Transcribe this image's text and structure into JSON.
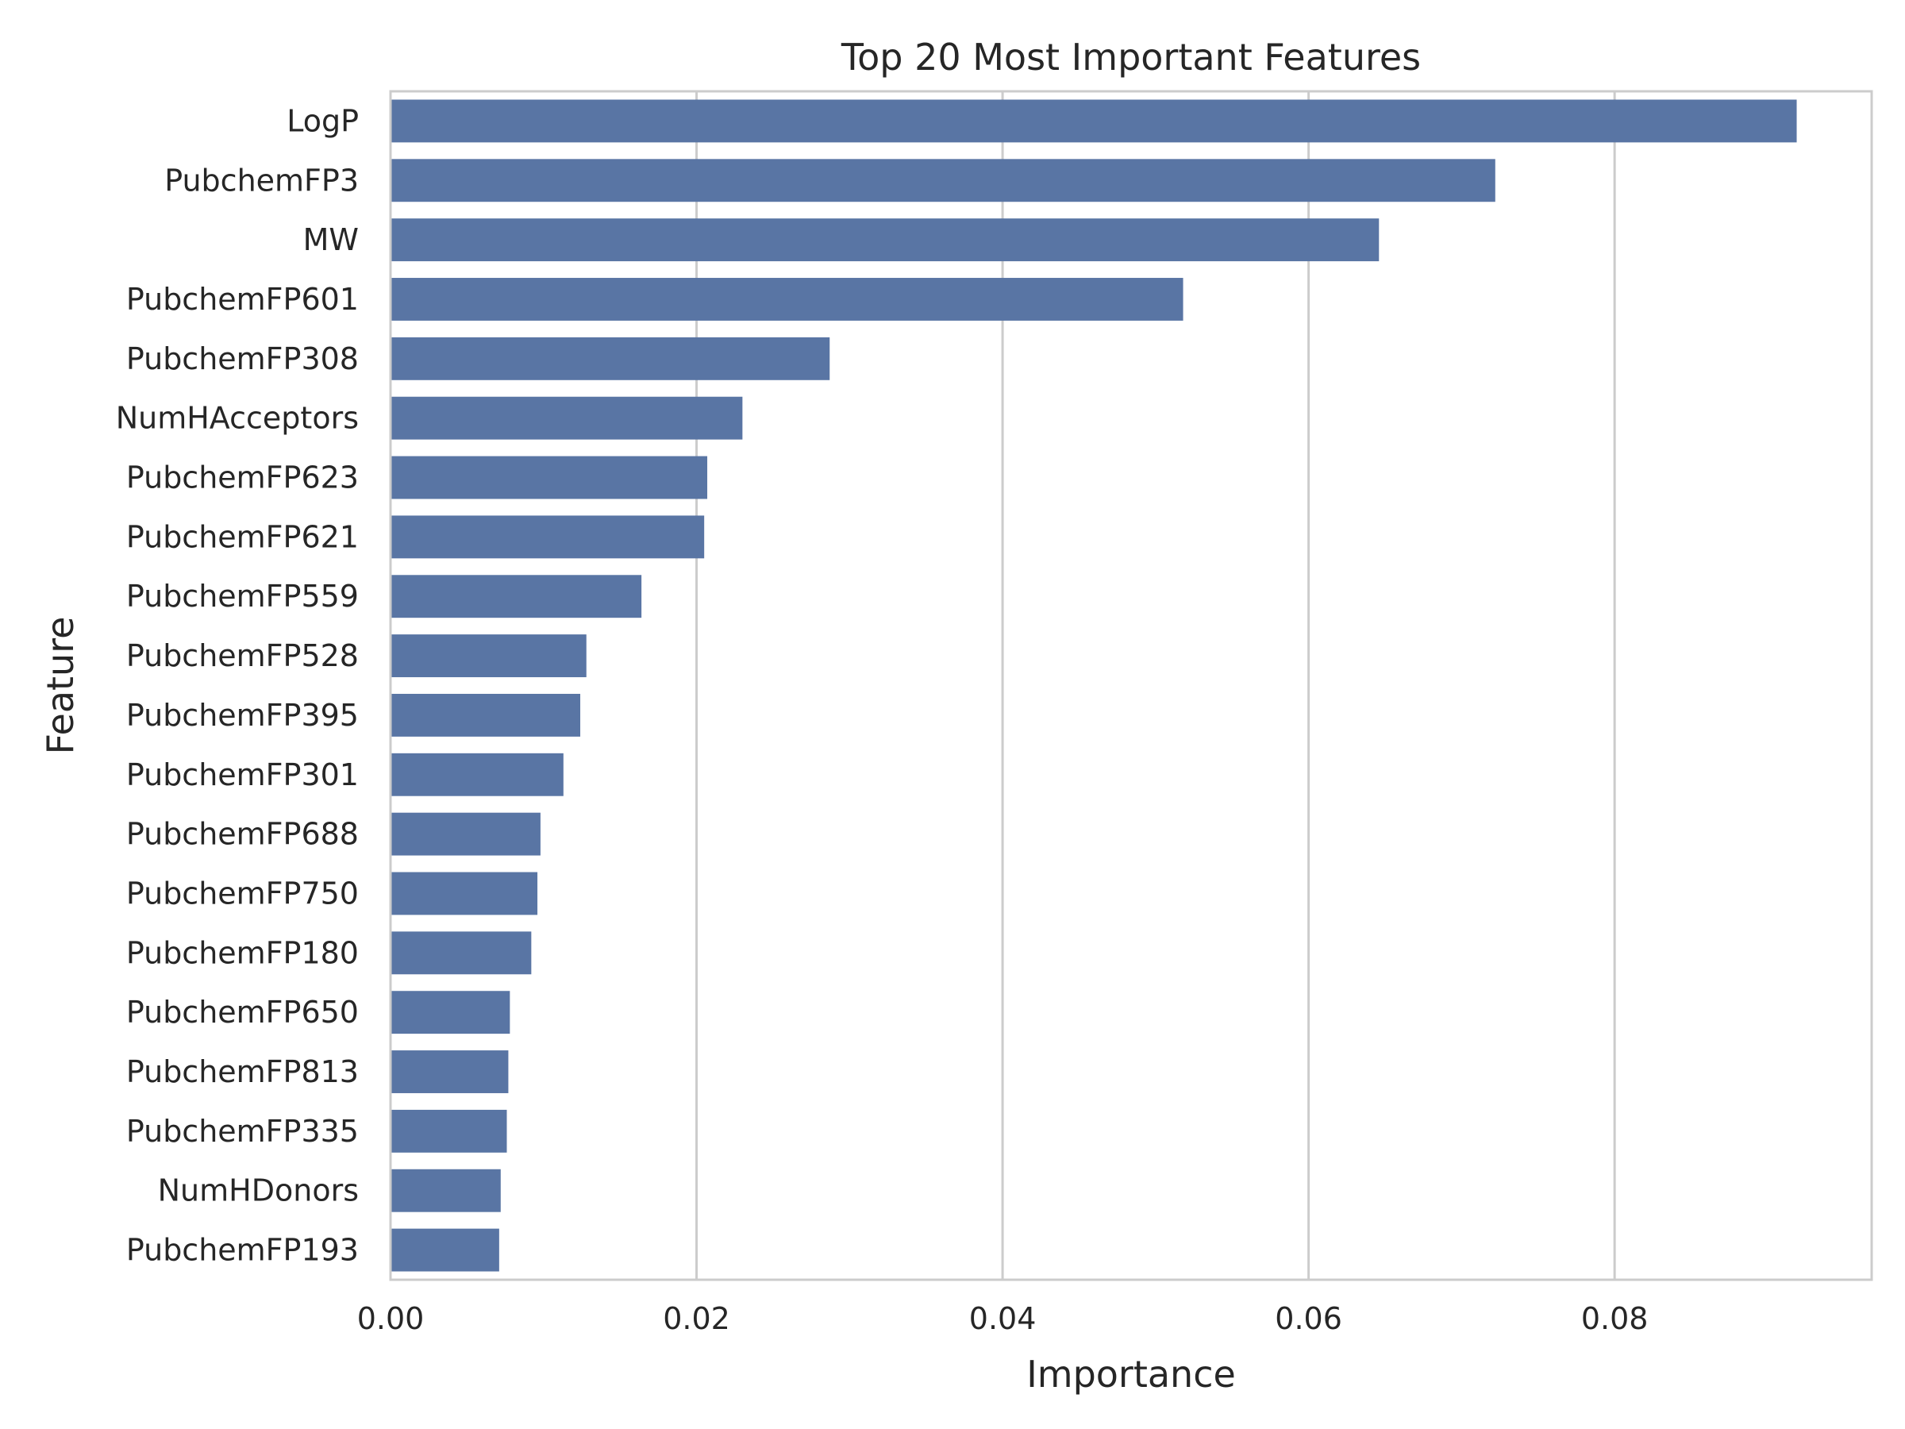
{
  "chart_data": {
    "type": "bar",
    "orientation": "horizontal",
    "title": "Top 20 Most Important Features",
    "xlabel": "Importance",
    "ylabel": "Feature",
    "xlim": [
      0,
      0.0968
    ],
    "xticks": [
      "0.00",
      "0.02",
      "0.04",
      "0.06",
      "0.08"
    ],
    "xtick_values": [
      0,
      0.02,
      0.04,
      0.06,
      0.08
    ],
    "grid": "vertical",
    "bar_color": "#5975a4",
    "categories": [
      "LogP",
      "PubchemFP3",
      "MW",
      "PubchemFP601",
      "PubchemFP308",
      "NumHAcceptors",
      "PubchemFP623",
      "PubchemFP621",
      "PubchemFP559",
      "PubchemFP528",
      "PubchemFP395",
      "PubchemFP301",
      "PubchemFP688",
      "PubchemFP750",
      "PubchemFP180",
      "PubchemFP650",
      "PubchemFP813",
      "PubchemFP335",
      "NumHDonors",
      "PubchemFP193"
    ],
    "values": [
      0.0919,
      0.0722,
      0.0646,
      0.0518,
      0.0287,
      0.023,
      0.0207,
      0.0205,
      0.0164,
      0.0128,
      0.0124,
      0.0113,
      0.0098,
      0.0096,
      0.0092,
      0.0078,
      0.0077,
      0.0076,
      0.0072,
      0.0071
    ]
  }
}
